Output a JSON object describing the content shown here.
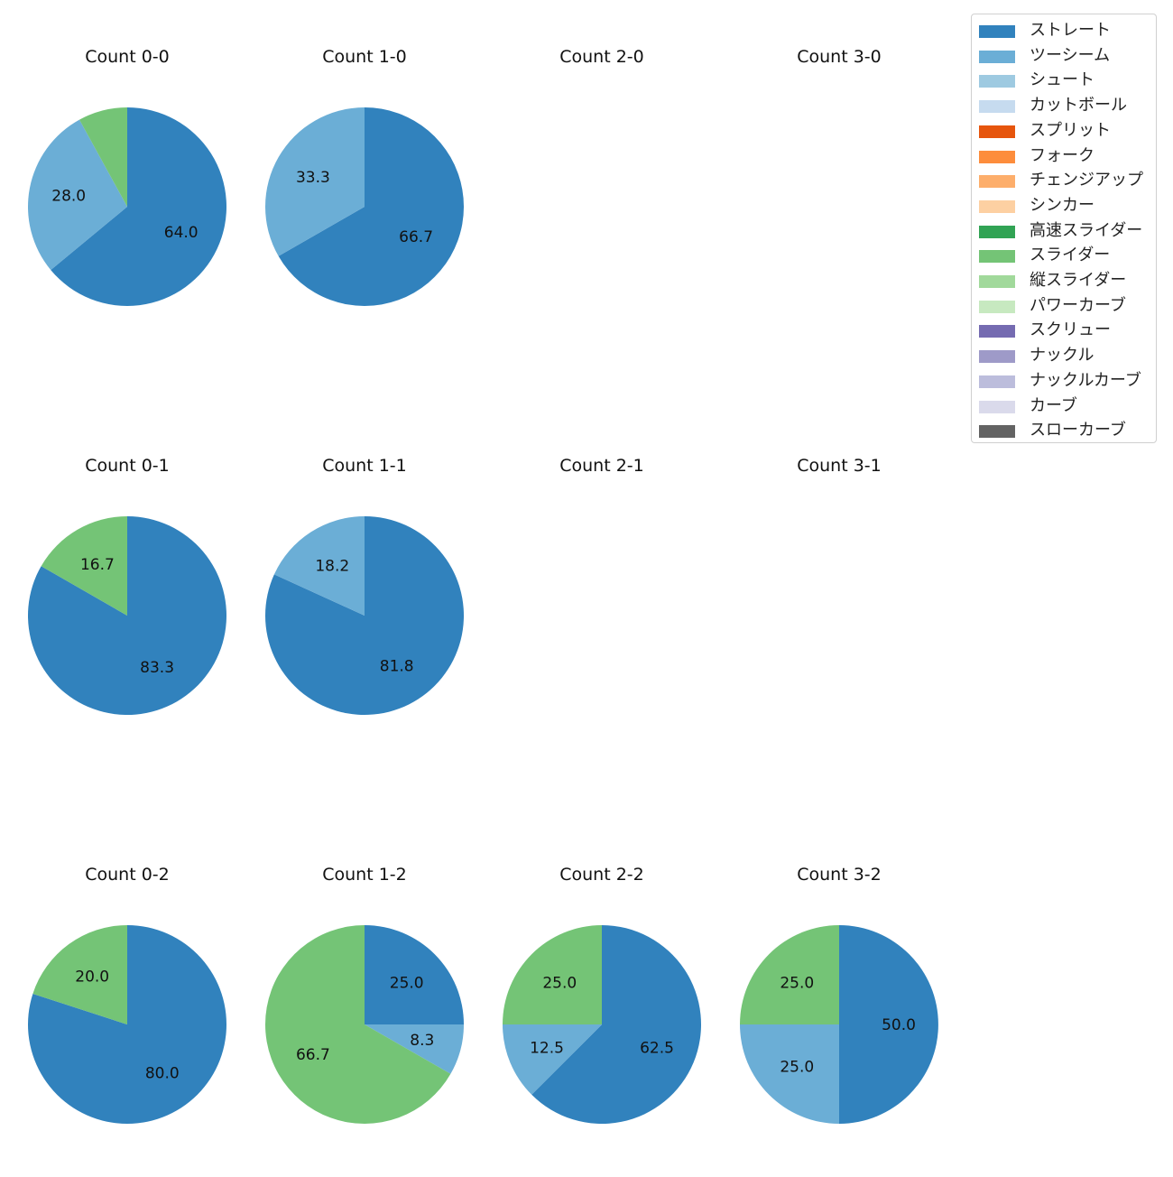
{
  "chart_data": {
    "type": "pie",
    "grid": "3 rows x 4 columns of pie charts",
    "legend": {
      "position": "top-right",
      "entries": [
        {
          "label": "ストレート",
          "color": "#3182bd"
        },
        {
          "label": "ツーシーム",
          "color": "#6baed6"
        },
        {
          "label": "シュート",
          "color": "#9ecae1"
        },
        {
          "label": "カットボール",
          "color": "#c6dbef"
        },
        {
          "label": "スプリット",
          "color": "#e6550d"
        },
        {
          "label": "フォーク",
          "color": "#fd8d3c"
        },
        {
          "label": "チェンジアップ",
          "color": "#fdae6b"
        },
        {
          "label": "シンカー",
          "color": "#fdd0a2"
        },
        {
          "label": "高速スライダー",
          "color": "#31a354"
        },
        {
          "label": "スライダー",
          "color": "#74c476"
        },
        {
          "label": "縦スライダー",
          "color": "#a1d99b"
        },
        {
          "label": "パワーカーブ",
          "color": "#c7e9c0"
        },
        {
          "label": "スクリュー",
          "color": "#756bb1"
        },
        {
          "label": "ナックル",
          "color": "#9e9ac8"
        },
        {
          "label": "ナックルカーブ",
          "color": "#bcbddc"
        },
        {
          "label": "カーブ",
          "color": "#dadaeb"
        },
        {
          "label": "スローカーブ",
          "color": "#636363"
        }
      ]
    },
    "pies": [
      {
        "title": "Count 0-0",
        "slices": [
          {
            "pitch": "ストレート",
            "value": 64.0
          },
          {
            "pitch": "ツーシーム",
            "value": 28.0
          },
          {
            "pitch": "スライダー",
            "value": 8.0,
            "label_hidden": true
          }
        ]
      },
      {
        "title": "Count 1-0",
        "slices": [
          {
            "pitch": "ストレート",
            "value": 66.7
          },
          {
            "pitch": "ツーシーム",
            "value": 33.3
          }
        ]
      },
      {
        "title": "Count 2-0",
        "slices": []
      },
      {
        "title": "Count 3-0",
        "slices": []
      },
      {
        "title": "Count 0-1",
        "slices": [
          {
            "pitch": "ストレート",
            "value": 83.3
          },
          {
            "pitch": "スライダー",
            "value": 16.7
          }
        ]
      },
      {
        "title": "Count 1-1",
        "slices": [
          {
            "pitch": "ストレート",
            "value": 81.8
          },
          {
            "pitch": "ツーシーム",
            "value": 18.2
          }
        ]
      },
      {
        "title": "Count 2-1",
        "slices": []
      },
      {
        "title": "Count 3-1",
        "slices": []
      },
      {
        "title": "Count 0-2",
        "slices": [
          {
            "pitch": "ストレート",
            "value": 80.0
          },
          {
            "pitch": "スライダー",
            "value": 20.0
          }
        ]
      },
      {
        "title": "Count 1-2",
        "slices": [
          {
            "pitch": "ストレート",
            "value": 25.0
          },
          {
            "pitch": "ツーシーム",
            "value": 8.3
          },
          {
            "pitch": "スライダー",
            "value": 66.7
          }
        ]
      },
      {
        "title": "Count 2-2",
        "slices": [
          {
            "pitch": "ストレート",
            "value": 62.5
          },
          {
            "pitch": "ツーシーム",
            "value": 12.5
          },
          {
            "pitch": "スライダー",
            "value": 25.0
          }
        ]
      },
      {
        "title": "Count 3-2",
        "slices": [
          {
            "pitch": "ストレート",
            "value": 50.0
          },
          {
            "pitch": "ツーシーム",
            "value": 25.0
          },
          {
            "pitch": "スライダー",
            "value": 25.0
          }
        ]
      }
    ]
  }
}
